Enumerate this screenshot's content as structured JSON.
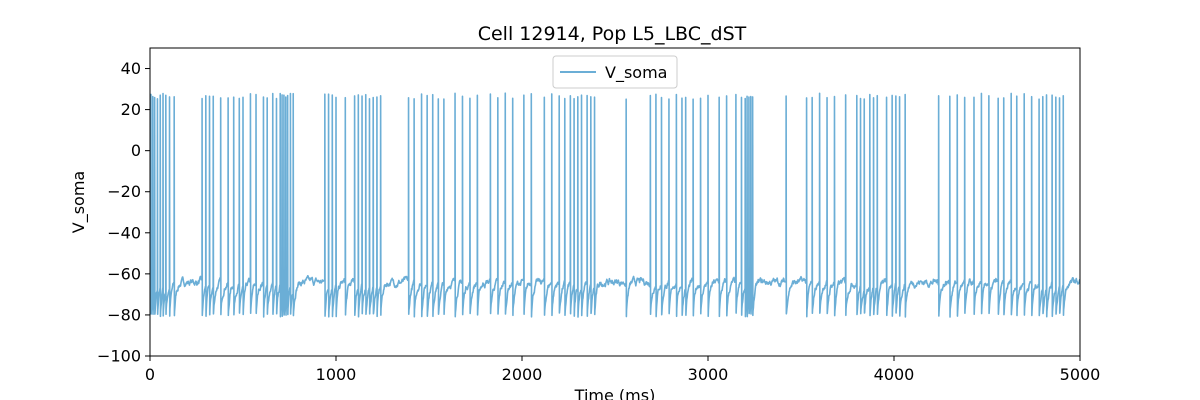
{
  "chart_data": {
    "type": "line",
    "title": "Cell 12914, Pop L5_LBC_dST",
    "xlabel": "Time (ms)",
    "ylabel": "V_soma",
    "xlim": [
      0,
      5000
    ],
    "ylim": [
      -100,
      50
    ],
    "xticks": [
      0,
      1000,
      2000,
      3000,
      4000,
      5000
    ],
    "xtick_labels": [
      "0",
      "1000",
      "2000",
      "3000",
      "4000",
      "5000"
    ],
    "yticks": [
      -100,
      -80,
      -60,
      -40,
      -20,
      0,
      20,
      40
    ],
    "ytick_labels": [
      "−100",
      "−80",
      "−60",
      "−40",
      "−20",
      "0",
      "20",
      "40"
    ],
    "grid": false,
    "legend_position": "top-center",
    "series": [
      {
        "name": "V_soma",
        "color": "#6baed6",
        "resting_potential": -64,
        "spike_peak": 28,
        "after_hyperpolarization": -81,
        "spike_times": [
          5,
          15,
          25,
          40,
          55,
          70,
          85,
          105,
          130,
          280,
          300,
          320,
          340,
          380,
          420,
          450,
          480,
          500,
          540,
          570,
          610,
          630,
          660,
          680,
          700,
          710,
          720,
          730,
          740,
          755,
          770,
          940,
          960,
          980,
          1000,
          1050,
          1100,
          1120,
          1140,
          1160,
          1180,
          1200,
          1220,
          1240,
          1390,
          1420,
          1460,
          1490,
          1520,
          1550,
          1580,
          1640,
          1680,
          1720,
          1760,
          1830,
          1870,
          1910,
          1950,
          2010,
          2050,
          2120,
          2160,
          2200,
          2230,
          2260,
          2280,
          2300,
          2320,
          2350,
          2370,
          2390,
          2560,
          2690,
          2720,
          2750,
          2790,
          2830,
          2860,
          2880,
          2920,
          2960,
          3000,
          3060,
          3100,
          3150,
          3180,
          3200,
          3210,
          3220,
          3230,
          3240,
          3420,
          3530,
          3560,
          3600,
          3640,
          3680,
          3740,
          3800,
          3820,
          3840,
          3870,
          3890,
          3910,
          3960,
          3990,
          4010,
          4030,
          4060,
          4240,
          4300,
          4340,
          4380,
          4430,
          4470,
          4510,
          4560,
          4590,
          4630,
          4660,
          4700,
          4740,
          4780,
          4800,
          4820,
          4850,
          4870,
          4890,
          4910
        ]
      }
    ]
  }
}
